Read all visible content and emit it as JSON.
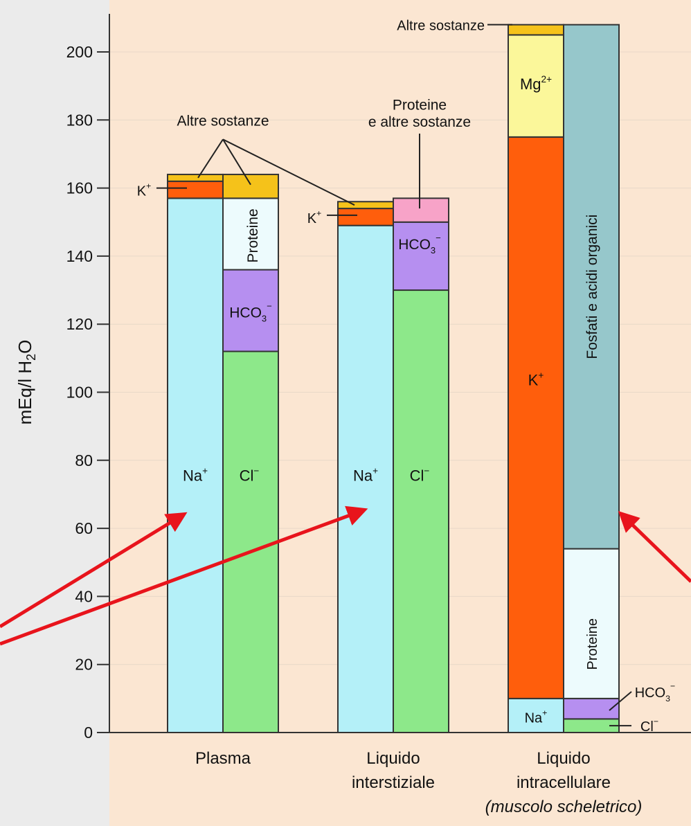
{
  "chart_data": {
    "type": "bar",
    "stacked": true,
    "ylabel_main": "mEq/l H",
    "ylabel_sub": "2",
    "ylabel_end": "O",
    "ylim": [
      0,
      210
    ],
    "yticks": [
      0,
      20,
      40,
      60,
      80,
      100,
      120,
      140,
      160,
      180,
      200
    ],
    "grid": true,
    "colors": {
      "Na": "#b4f0f8",
      "K": "#ff5e0c",
      "Altre": "#f5c21a",
      "Mg": "#fbf79a",
      "Cl": "#8de88a",
      "HCO3": "#b68ff0",
      "Proteine": "#edfbfd",
      "ProteineAltre": "#f7a3c8",
      "Fosfati": "#96c7cb",
      "background": "#fbe6d2",
      "arrow": "#e8141c"
    },
    "categories": [
      {
        "name": "Plasma",
        "name2": ""
      },
      {
        "name": "Liquido",
        "name2": "interstiziale"
      },
      {
        "name": "Liquido",
        "name2": "intracellulare",
        "name3": "(muscolo scheletrico)"
      }
    ],
    "stacks": [
      [
        {
          "key": "Na",
          "value": 157
        },
        {
          "key": "K",
          "value": 5
        },
        {
          "key": "Altre",
          "value": 2
        }
      ],
      [
        {
          "key": "Cl",
          "value": 112
        },
        {
          "key": "HCO3",
          "value": 24
        },
        {
          "key": "Proteine",
          "value": 21
        },
        {
          "key": "Altre",
          "value": 7
        }
      ],
      [
        {
          "key": "Na",
          "value": 149
        },
        {
          "key": "K",
          "value": 5
        },
        {
          "key": "Altre",
          "value": 2
        }
      ],
      [
        {
          "key": "Cl",
          "value": 130
        },
        {
          "key": "HCO3",
          "value": 20
        },
        {
          "key": "ProteineAltre",
          "value": 7
        }
      ],
      [
        {
          "key": "Na",
          "value": 10
        },
        {
          "key": "K",
          "value": 165
        },
        {
          "key": "Mg",
          "value": 30
        },
        {
          "key": "Altre",
          "value": 3
        }
      ],
      [
        {
          "key": "Cl",
          "value": 4
        },
        {
          "key": "HCO3",
          "value": 6
        },
        {
          "key": "Proteine",
          "value": 44
        },
        {
          "key": "Fosfati",
          "value": 154
        }
      ]
    ],
    "labels": {
      "altre_sostanze": "Altre sostanze",
      "proteine_altre_1": "Proteine",
      "proteine_altre_2": "e altre sostanze",
      "na": "Na",
      "na_sup": "+",
      "k": "K",
      "k_sup": "+",
      "cl": "Cl",
      "cl_sup": "−",
      "hco3": "HCO",
      "hco3_sub": "3",
      "hco3_sup": "−",
      "mg": "Mg",
      "mg_sup": "2+",
      "proteine": "Proteine",
      "fosfati": "Fosfati e acidi organici"
    }
  }
}
